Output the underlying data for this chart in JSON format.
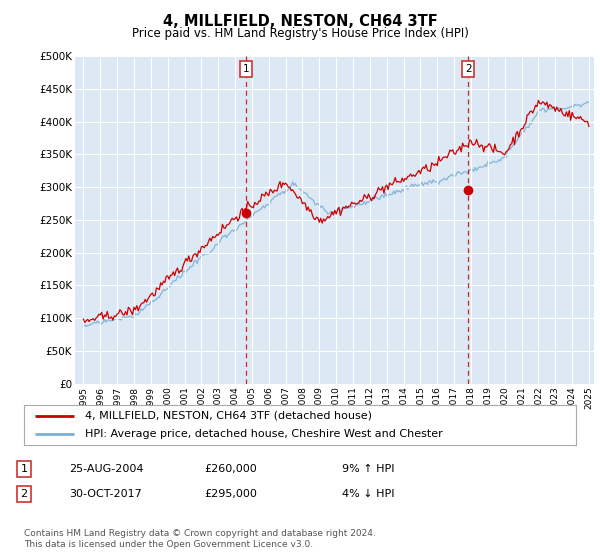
{
  "title": "4, MILLFIELD, NESTON, CH64 3TF",
  "subtitle": "Price paid vs. HM Land Registry's House Price Index (HPI)",
  "legend_line1": "4, MILLFIELD, NESTON, CH64 3TF (detached house)",
  "legend_line2": "HPI: Average price, detached house, Cheshire West and Chester",
  "transaction1_date": "25-AUG-2004",
  "transaction1_price": "£260,000",
  "transaction1_hpi": "9% ↑ HPI",
  "transaction2_date": "30-OCT-2017",
  "transaction2_price": "£295,000",
  "transaction2_hpi": "4% ↓ HPI",
  "footer": "Contains HM Land Registry data © Crown copyright and database right 2024.\nThis data is licensed under the Open Government Licence v3.0.",
  "hpi_color": "#7bafd4",
  "price_color": "#cc0000",
  "vline_color": "#cc0000",
  "plot_bg": "#dce9f5",
  "ylim": [
    0,
    500000
  ],
  "ytick_values": [
    0,
    50000,
    100000,
    150000,
    200000,
    250000,
    300000,
    350000,
    400000,
    450000,
    500000
  ],
  "ytick_labels": [
    "£0",
    "£50K",
    "£100K",
    "£150K",
    "£200K",
    "£250K",
    "£300K",
    "£350K",
    "£400K",
    "£450K",
    "£500K"
  ],
  "xmin": 1995,
  "xmax": 2025,
  "transaction1_year": 2004.64,
  "transaction1_value": 260000,
  "transaction2_year": 2017.83,
  "transaction2_value": 295000,
  "seed_hpi": 77,
  "seed_price": 42
}
